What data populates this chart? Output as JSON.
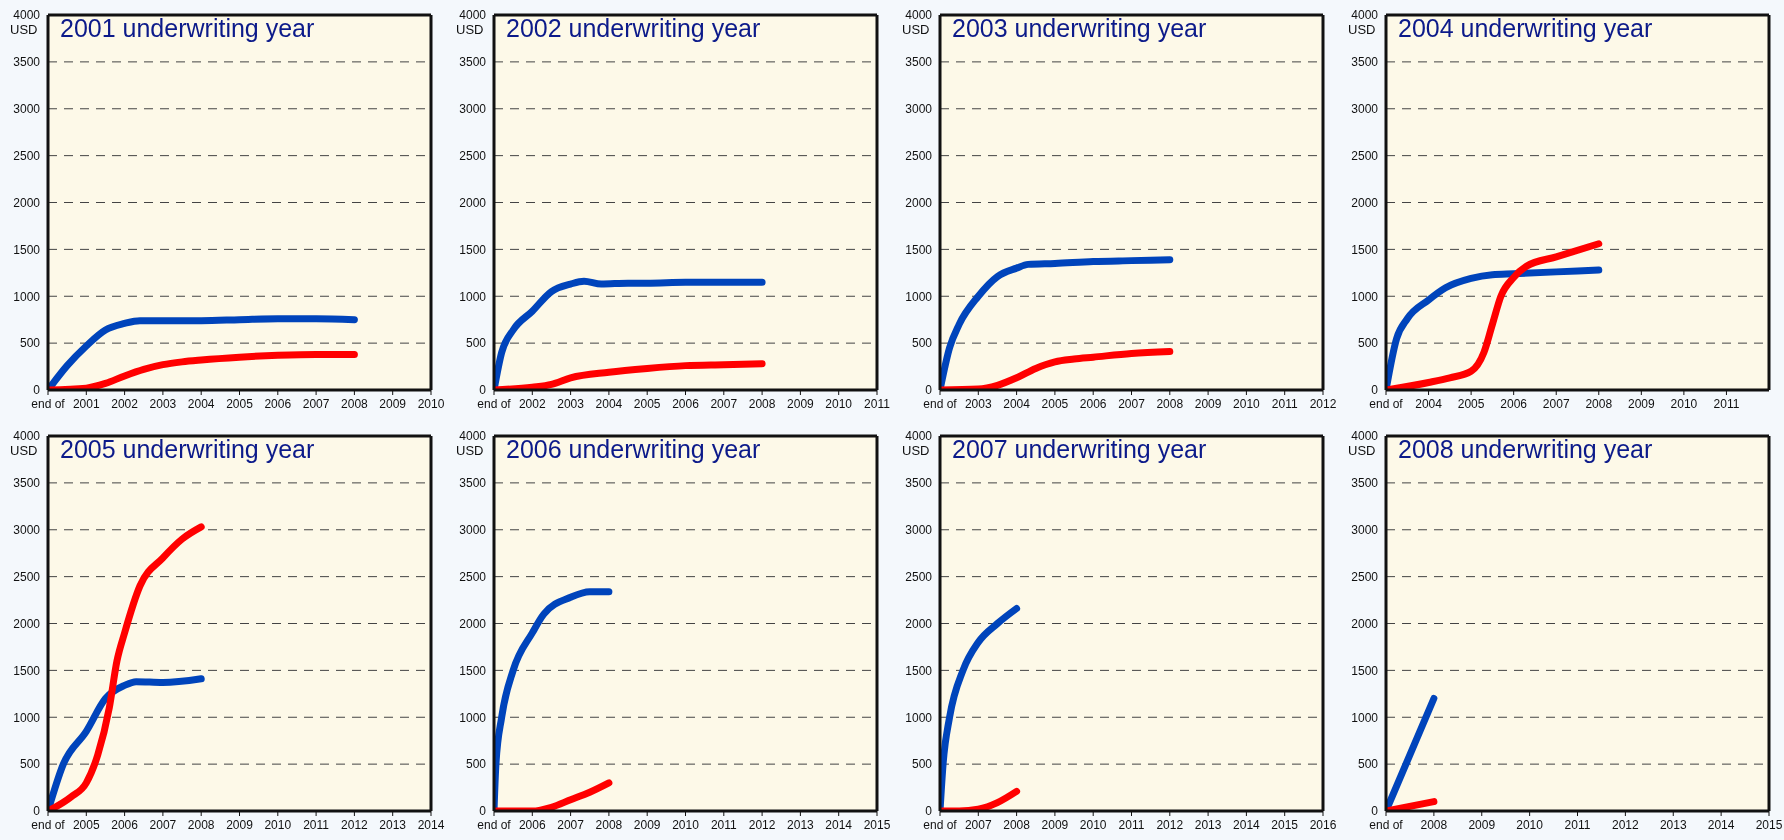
{
  "chart_data": [
    {
      "type": "line",
      "title": "2001 underwriting year",
      "ylabel": "USD",
      "xlim": [
        2000,
        2010
      ],
      "xticks": [
        {
          "value": 2000,
          "label": "end of"
        },
        2001,
        2002,
        2003,
        2004,
        2005,
        2006,
        2007,
        2008,
        2009,
        2010
      ],
      "ylim": [
        0,
        4000
      ],
      "yticks": [
        0,
        500,
        1000,
        1500,
        2000,
        2500,
        3000,
        3500,
        4000
      ],
      "grid": "y",
      "marker": "none",
      "line_style": "solid",
      "series": [
        {
          "color": "#0044bb",
          "x": [
            2000,
            2000.5,
            2001,
            2001.5,
            2002,
            2002.4,
            2003,
            2004,
            2005,
            2006,
            2007,
            2008
          ],
          "values": [
            0,
            260,
            470,
            640,
            710,
            740,
            740,
            740,
            750,
            760,
            760,
            750
          ]
        },
        {
          "color": "#ff0000",
          "x": [
            2000,
            2001,
            2001.5,
            2002,
            2002.5,
            2003,
            2003.5,
            2004,
            2005,
            2006,
            2007,
            2008
          ],
          "values": [
            0,
            20,
            70,
            150,
            220,
            270,
            300,
            320,
            350,
            370,
            380,
            380
          ]
        }
      ]
    },
    {
      "type": "line",
      "title": "2002  underwriting year",
      "ylabel": "USD",
      "xlim": [
        2001,
        2011
      ],
      "xticks": [
        {
          "value": 2001,
          "label": "end of"
        },
        2002,
        2003,
        2004,
        2005,
        2006,
        2007,
        2008,
        2009,
        2010,
        2011
      ],
      "ylim": [
        0,
        4000
      ],
      "yticks": [
        0,
        500,
        1000,
        1500,
        2000,
        2500,
        3000,
        3500,
        4000
      ],
      "grid": "y",
      "marker": "none",
      "line_style": "solid",
      "series": [
        {
          "color": "#0044bb",
          "x": [
            2001,
            2001.2,
            2001.5,
            2002,
            2002.5,
            2003,
            2003.35,
            2003.8,
            2004.5,
            2005,
            2006,
            2007,
            2008
          ],
          "values": [
            0,
            400,
            640,
            840,
            1050,
            1130,
            1160,
            1130,
            1140,
            1140,
            1150,
            1150,
            1150
          ]
        },
        {
          "color": "#ff0000",
          "x": [
            2001,
            2002,
            2002.5,
            2003,
            2004,
            2005,
            2006,
            2007,
            2008
          ],
          "values": [
            0,
            30,
            60,
            130,
            190,
            230,
            260,
            270,
            280
          ]
        }
      ]
    },
    {
      "type": "line",
      "title": "2003 underwriting year",
      "ylabel": "USD",
      "xlim": [
        2002,
        2012
      ],
      "xticks": [
        {
          "value": 2002,
          "label": "end of"
        },
        2003,
        2004,
        2005,
        2006,
        2007,
        2008,
        2009,
        2010,
        2011,
        2012
      ],
      "ylim": [
        0,
        4000
      ],
      "yticks": [
        0,
        500,
        1000,
        1500,
        2000,
        2500,
        3000,
        3500,
        4000
      ],
      "grid": "y",
      "marker": "none",
      "line_style": "solid",
      "series": [
        {
          "color": "#0044bb",
          "x": [
            2002,
            2002.25,
            2002.5,
            2003,
            2003.5,
            2004,
            2004.3,
            2005,
            2006,
            2007,
            2008
          ],
          "values": [
            0,
            450,
            700,
            1000,
            1210,
            1300,
            1340,
            1350,
            1370,
            1380,
            1390
          ]
        },
        {
          "color": "#ff0000",
          "x": [
            2002,
            2003,
            2003.5,
            2004,
            2004.5,
            2005,
            2005.5,
            2006,
            2007,
            2008
          ],
          "values": [
            0,
            10,
            50,
            130,
            230,
            300,
            330,
            350,
            390,
            410
          ]
        }
      ]
    },
    {
      "type": "line",
      "title": "2004 underwriting year",
      "ylabel": "USD",
      "xlim": [
        2003,
        2012
      ],
      "xticks": [
        {
          "value": 2003,
          "label": "end of"
        },
        2004,
        2005,
        2006,
        2007,
        2008,
        2009,
        2010,
        2011
      ],
      "ylim": [
        0,
        4000
      ],
      "yticks": [
        0,
        500,
        1000,
        1500,
        2000,
        2500,
        3000,
        3500,
        4000
      ],
      "grid": "y",
      "marker": "none",
      "line_style": "solid",
      "series": [
        {
          "color": "#0044bb",
          "x": [
            2003,
            2003.25,
            2003.5,
            2004,
            2004.4,
            2005,
            2005.5,
            2006,
            2007,
            2008
          ],
          "values": [
            0,
            550,
            760,
            960,
            1090,
            1190,
            1230,
            1240,
            1260,
            1280
          ]
        },
        {
          "color": "#ff0000",
          "x": [
            2003,
            2004,
            2004.5,
            2005,
            2005.3,
            2005.5,
            2005.7,
            2006,
            2006.3,
            2007,
            2008
          ],
          "values": [
            0,
            80,
            130,
            200,
            400,
            700,
            1000,
            1200,
            1320,
            1420,
            1560
          ]
        }
      ]
    },
    {
      "type": "line",
      "title": "2005 underwriting year",
      "ylabel": "USD",
      "xlim": [
        2004,
        2014
      ],
      "xticks": [
        {
          "value": 2004,
          "label": "end of"
        },
        2005,
        2006,
        2007,
        2008,
        2009,
        2010,
        2011,
        2012,
        2013,
        2014
      ],
      "ylim": [
        0,
        4000
      ],
      "yticks": [
        0,
        500,
        1000,
        1500,
        2000,
        2500,
        3000,
        3500,
        4000
      ],
      "grid": "y",
      "marker": "none",
      "line_style": "solid",
      "series": [
        {
          "color": "#0044bb",
          "x": [
            2004,
            2004.4,
            2005,
            2005.5,
            2006,
            2006.3,
            2007,
            2008
          ],
          "values": [
            0,
            500,
            850,
            1200,
            1340,
            1380,
            1370,
            1410
          ]
        },
        {
          "color": "#ff0000",
          "x": [
            2004,
            2004.6,
            2005,
            2005.3,
            2005.6,
            2005.8,
            2006,
            2006.4,
            2007,
            2007.5,
            2008
          ],
          "values": [
            0,
            150,
            300,
            600,
            1100,
            1600,
            1900,
            2400,
            2700,
            2900,
            3030
          ]
        }
      ]
    },
    {
      "type": "line",
      "title": "2006 underwriting year",
      "ylabel": "USD",
      "xlim": [
        2005,
        2015
      ],
      "xticks": [
        {
          "value": 2005,
          "label": "end of"
        },
        2006,
        2007,
        2008,
        2009,
        2010,
        2011,
        2012,
        2013,
        2014,
        2015
      ],
      "ylim": [
        0,
        4000
      ],
      "yticks": [
        0,
        500,
        1000,
        1500,
        2000,
        2500,
        3000,
        3500,
        4000
      ],
      "grid": "y",
      "marker": "none",
      "line_style": "solid",
      "series": [
        {
          "color": "#0044bb",
          "x": [
            2005,
            2005.05,
            2005.2,
            2005.5,
            2006,
            2006.3,
            2007,
            2007.5,
            2008
          ],
          "values": [
            0,
            500,
            1000,
            1500,
            1900,
            2100,
            2280,
            2340,
            2340
          ]
        },
        {
          "color": "#ff0000",
          "x": [
            2005,
            2006,
            2006.5,
            2007,
            2007.5,
            2008
          ],
          "values": [
            0,
            0,
            40,
            120,
            200,
            300
          ]
        }
      ]
    },
    {
      "type": "line",
      "title": "2007 underwriting year",
      "ylabel": "USD",
      "xlim": [
        2006,
        2016
      ],
      "xticks": [
        {
          "value": 2006,
          "label": "end of"
        },
        2007,
        2008,
        2009,
        2010,
        2011,
        2012,
        2013,
        2014,
        2015,
        2016
      ],
      "ylim": [
        0,
        4000
      ],
      "yticks": [
        0,
        500,
        1000,
        1500,
        2000,
        2500,
        3000,
        3500,
        4000
      ],
      "grid": "y",
      "marker": "none",
      "line_style": "solid",
      "series": [
        {
          "color": "#0044bb",
          "x": [
            2006,
            2006.08,
            2006.25,
            2006.6,
            2007,
            2007.5,
            2008
          ],
          "values": [
            0,
            500,
            1000,
            1500,
            1800,
            2000,
            2160
          ]
        },
        {
          "color": "#ff0000",
          "x": [
            2006,
            2006.5,
            2007,
            2007.5,
            2008
          ],
          "values": [
            0,
            0,
            20,
            90,
            210
          ]
        }
      ]
    },
    {
      "type": "line",
      "title": "2008 underwriting year",
      "ylabel": "USD",
      "xlim": [
        2007,
        2015
      ],
      "xticks": [
        {
          "value": 2007,
          "label": "end of"
        },
        2008,
        2009,
        2010,
        2011,
        2012,
        2013,
        2014,
        2015
      ],
      "ylim": [
        0,
        4000
      ],
      "yticks": [
        0,
        500,
        1000,
        1500,
        2000,
        2500,
        3000,
        3500,
        4000
      ],
      "grid": "y",
      "marker": "none",
      "line_style": "solid",
      "series": [
        {
          "color": "#0044bb",
          "x": [
            2007,
            2008
          ],
          "values": [
            0,
            1200
          ]
        },
        {
          "color": "#ff0000",
          "x": [
            2007,
            2008
          ],
          "values": [
            0,
            100
          ]
        }
      ]
    }
  ]
}
